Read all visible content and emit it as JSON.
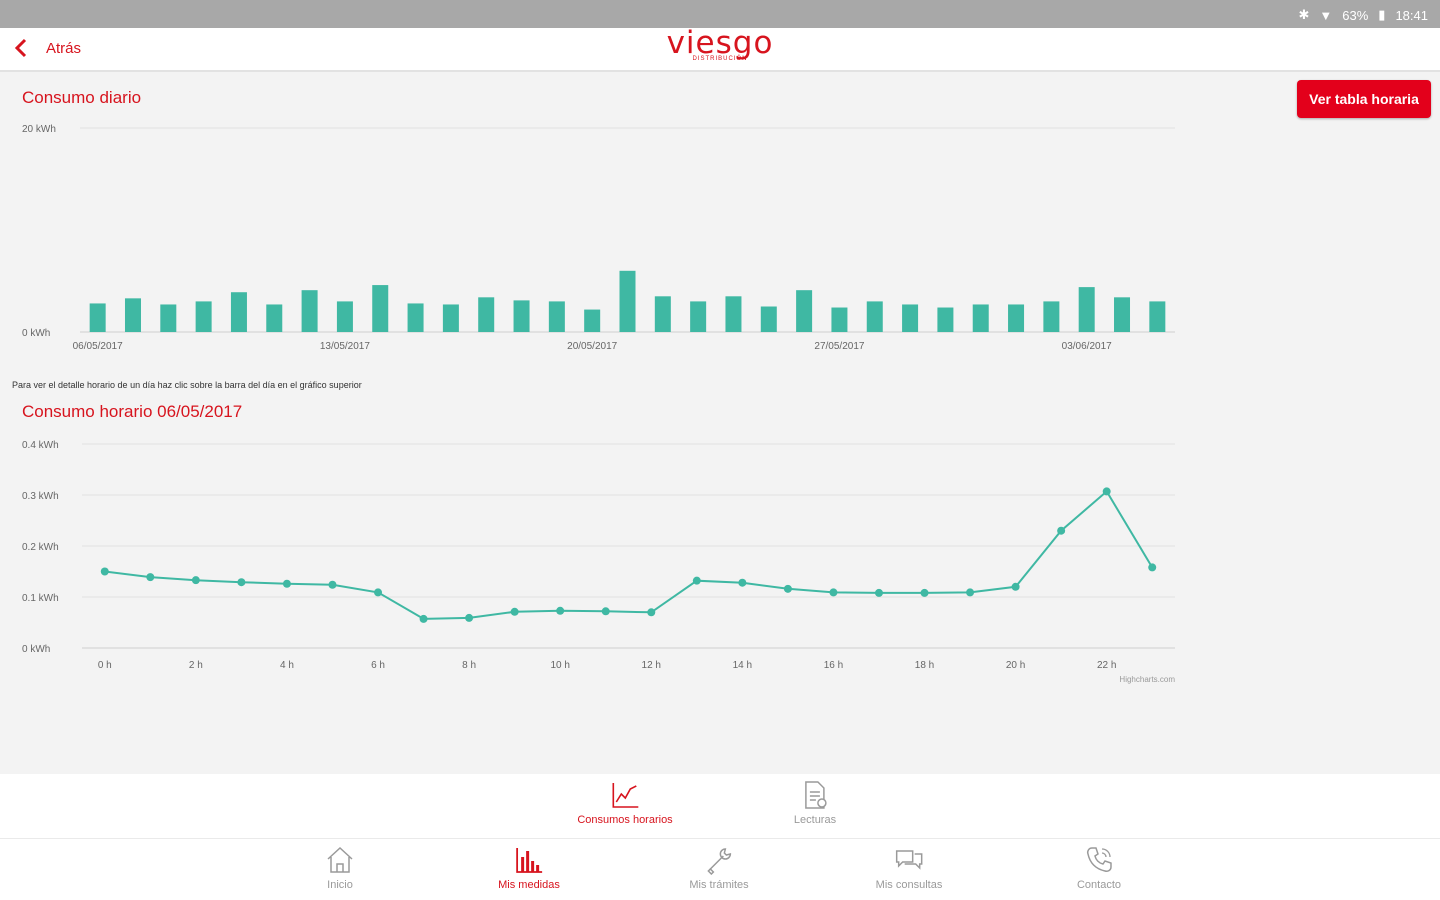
{
  "status": {
    "battery": "63%",
    "time": "18:41"
  },
  "header": {
    "back_label": "Atrás",
    "logo": "viesgo",
    "logo_sub": "DISTRIBUCIÓN"
  },
  "daily": {
    "title": "Consumo diario",
    "button_label": "Ver tabla horaria",
    "hint": "Para ver el detalle horario de un día haz clic sobre la barra del día en el gráfico superior"
  },
  "hourly": {
    "title": "Consumo horario 06/05/2017"
  },
  "credits": "Highcharts.com",
  "chart_data": [
    {
      "type": "bar",
      "ylim": [
        0,
        20
      ],
      "y_ticks": [
        "0 kWh",
        "20 kWh"
      ],
      "x_tick_labels": [
        "06/05/2017",
        "13/05/2017",
        "20/05/2017",
        "27/05/2017",
        "03/06/2017"
      ],
      "x_tick_indices": [
        0,
        7,
        14,
        21,
        28
      ],
      "values": [
        2.8,
        3.3,
        2.7,
        3.0,
        3.9,
        2.7,
        4.1,
        3.0,
        4.6,
        2.8,
        2.7,
        3.4,
        3.1,
        3.0,
        2.2,
        6.0,
        3.5,
        3.0,
        3.5,
        2.5,
        4.1,
        2.4,
        3.0,
        2.7,
        2.4,
        2.7,
        2.7,
        3.0,
        4.4,
        3.4,
        3.0
      ],
      "color": "#3fb8a3"
    },
    {
      "type": "line",
      "ylim": [
        0,
        0.4
      ],
      "y_ticks": [
        "0 kWh",
        "0.1 kWh",
        "0.2 kWh",
        "0.3 kWh",
        "0.4 kWh"
      ],
      "x_tick_labels": [
        "0 h",
        "2 h",
        "4 h",
        "6 h",
        "8 h",
        "10 h",
        "12 h",
        "14 h",
        "16 h",
        "18 h",
        "20 h",
        "22 h"
      ],
      "x": [
        0,
        1,
        2,
        3,
        4,
        5,
        6,
        7,
        8,
        9,
        10,
        11,
        12,
        13,
        14,
        15,
        16,
        17,
        18,
        19,
        20,
        21,
        22,
        23
      ],
      "values": [
        0.15,
        0.139,
        0.133,
        0.129,
        0.126,
        0.124,
        0.109,
        0.057,
        0.059,
        0.071,
        0.073,
        0.072,
        0.07,
        0.132,
        0.128,
        0.116,
        0.109,
        0.108,
        0.108,
        0.109,
        0.12,
        0.23,
        0.307,
        0.158
      ],
      "color": "#3fb8a3"
    }
  ],
  "subnav": [
    {
      "label": "Consumos horarios",
      "icon": "line-chart-icon",
      "active": true
    },
    {
      "label": "Lecturas",
      "icon": "document-icon",
      "active": false
    }
  ],
  "nav": [
    {
      "label": "Inicio",
      "icon": "home-icon",
      "active": false
    },
    {
      "label": "Mis medidas",
      "icon": "bar-chart-icon",
      "active": true
    },
    {
      "label": "Mis trámites",
      "icon": "tools-icon",
      "active": false
    },
    {
      "label": "Mis consultas",
      "icon": "chat-icon",
      "active": false
    },
    {
      "label": "Contacto",
      "icon": "phone-icon",
      "active": false
    }
  ],
  "colors": {
    "brand": "#d7141e",
    "series": "#3fb8a3"
  }
}
